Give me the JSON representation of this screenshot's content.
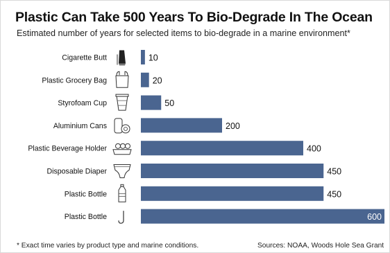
{
  "header": {
    "title": "Plastic Can Take 500 Years To Bio-Degrade In The Ocean",
    "subtitle": "Estimated number of years for selected items to bio-degrade in a marine environment*"
  },
  "footer": {
    "note": "* Exact time varies by product type and marine conditions.",
    "source": "Sources: NOAA, Woods Hole Sea Grant"
  },
  "chart_data": {
    "type": "bar",
    "orientation": "horizontal",
    "title": "Plastic Can Take 500 Years To Bio-Degrade In The Ocean",
    "subtitle": "Estimated number of years for selected items to bio-degrade in a marine environment*",
    "categories": [
      "Cigarette Butt",
      "Plastic Grocery Bag",
      "Styrofoam Cup",
      "Aluminium Cans",
      "Plastic Beverage Holder",
      "Disposable Diaper",
      "Plastic Bottle",
      "Plastic Bottle"
    ],
    "values": [
      10,
      20,
      50,
      200,
      400,
      450,
      450,
      600
    ],
    "value_labels": [
      "10",
      "20",
      "50",
      "200",
      "400",
      "450",
      "450",
      "600"
    ],
    "icons": [
      "cigarette-butt-icon",
      "grocery-bag-icon",
      "styrofoam-cup-icon",
      "aluminium-cans-icon",
      "beverage-holder-icon",
      "diaper-icon",
      "plastic-bottle-icon",
      "fishing-line-icon"
    ],
    "xlim": [
      0,
      600
    ],
    "grid": false,
    "bar_color": "#4a6590",
    "inner_label_color": "#ffffff"
  }
}
